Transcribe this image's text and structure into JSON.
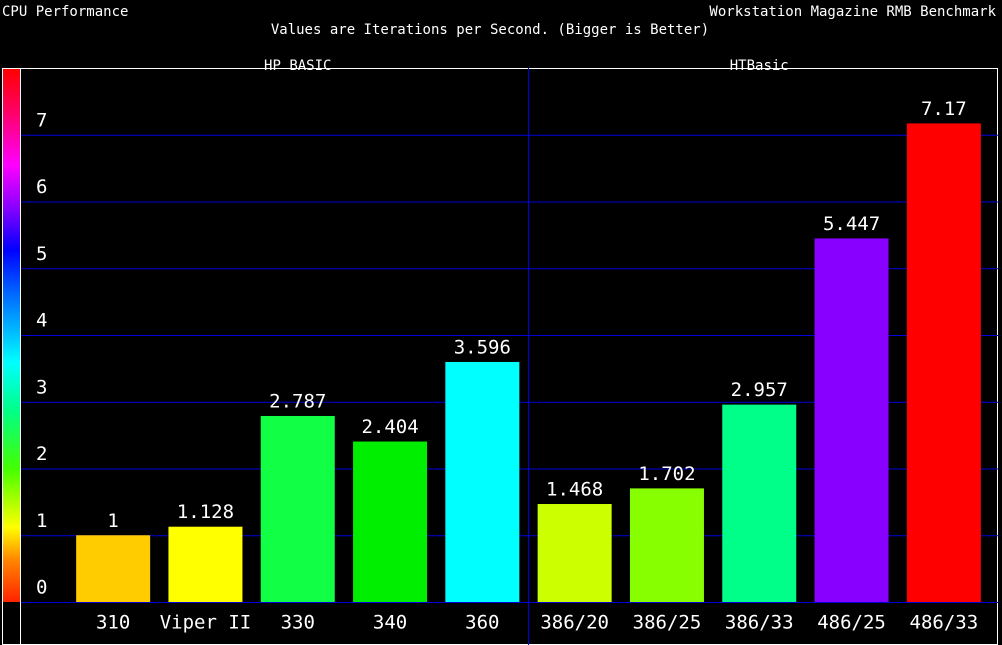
{
  "chart_data": {
    "type": "bar",
    "title": "CPU Performance",
    "subtitle": "Values are Iterations per Second. (Bigger is Better)",
    "source": "Workstation Magazine RMB Benchmark",
    "groups": [
      "HP BASIC",
      "HTBasic"
    ],
    "categories": [
      "310",
      "Viper II",
      "330",
      "340",
      "360",
      "386/20",
      "386/25",
      "386/33",
      "486/25",
      "486/33"
    ],
    "values": [
      1,
      1.128,
      2.787,
      2.404,
      3.596,
      1.468,
      1.702,
      2.957,
      5.447,
      7.17
    ],
    "colors": [
      "#ffcc00",
      "#ffff00",
      "#11ff44",
      "#00ee00",
      "#00ffff",
      "#ccff00",
      "#88ff00",
      "#00ff88",
      "#8800ff",
      "#ff0000"
    ],
    "ylim": [
      0,
      8
    ],
    "yticks": [
      0,
      1,
      2,
      3,
      4,
      5,
      6,
      7
    ],
    "grid": true,
    "grid_color": "#0000dd"
  }
}
